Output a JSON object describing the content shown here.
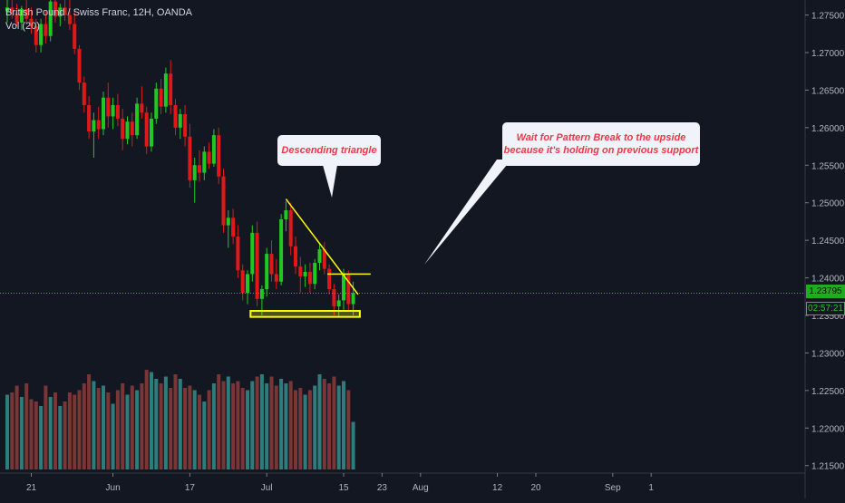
{
  "legend": {
    "symbol": "British Pound / Swiss Franc, 12H, OANDA",
    "volume": "Vol (20)"
  },
  "annotations": {
    "descending": "Descending triangle",
    "wait_line1": "Wait for Pattern Break to the upside",
    "wait_line2": "because it's holding on previous support"
  },
  "price_tag": {
    "price": "1.23795",
    "countdown": "02:57:21"
  },
  "colors": {
    "background": "#131722",
    "bull": "#22c822",
    "bear": "#e01818",
    "vol_bull": "#2e7d7d",
    "vol_bear": "#7a3535",
    "trendline": "#ffff00",
    "current_price_line": "#22c822",
    "axis_text": "#b2b5be",
    "callout_text": "#f23645",
    "callout_bg": "#f0f3fa"
  },
  "chart_data": {
    "type": "candlestick",
    "y_ticks": [
      "1.27500",
      "1.27000",
      "1.26500",
      "1.26000",
      "1.25500",
      "1.25000",
      "1.24500",
      "1.24000",
      "1.23500",
      "1.23000",
      "1.22500",
      "1.22000",
      "1.21500"
    ],
    "y_tick_values": [
      1.275,
      1.27,
      1.265,
      1.26,
      1.255,
      1.25,
      1.245,
      1.24,
      1.235,
      1.23,
      1.225,
      1.22,
      1.215
    ],
    "ylim": [
      1.214,
      1.277
    ],
    "x_ticks": [
      "21",
      "Jun",
      "17",
      "Jul",
      "15",
      "23",
      "Aug",
      "12",
      "20",
      "Sep",
      "1"
    ],
    "x_tick_indices": [
      5,
      22,
      38,
      54,
      70,
      78,
      86,
      102,
      110,
      126,
      134
    ],
    "candles": [
      [
        1.2755,
        1.277,
        1.274,
        1.276
      ],
      [
        1.276,
        1.2772,
        1.2745,
        1.2752
      ],
      [
        1.2752,
        1.2765,
        1.2735,
        1.274
      ],
      [
        1.274,
        1.2762,
        1.273,
        1.2758
      ],
      [
        1.2758,
        1.2772,
        1.274,
        1.2745
      ],
      [
        1.2745,
        1.276,
        1.2725,
        1.2735
      ],
      [
        1.2735,
        1.2745,
        1.27,
        1.271
      ],
      [
        1.271,
        1.2745,
        1.27,
        1.2738
      ],
      [
        1.2738,
        1.2755,
        1.2712,
        1.2722
      ],
      [
        1.2722,
        1.2775,
        1.2715,
        1.2768
      ],
      [
        1.2768,
        1.278,
        1.274,
        1.2748
      ],
      [
        1.2748,
        1.2765,
        1.2735,
        1.276
      ],
      [
        1.276,
        1.2782,
        1.2742,
        1.275
      ],
      [
        1.275,
        1.277,
        1.273,
        1.2738
      ],
      [
        1.2738,
        1.2755,
        1.2698,
        1.2705
      ],
      [
        1.2705,
        1.271,
        1.265,
        1.266
      ],
      [
        1.266,
        1.2668,
        1.262,
        1.263
      ],
      [
        1.263,
        1.2642,
        1.2585,
        1.2595
      ],
      [
        1.2595,
        1.262,
        1.256,
        1.261
      ],
      [
        1.261,
        1.2628,
        1.2585,
        1.2598
      ],
      [
        1.2598,
        1.2648,
        1.259,
        1.264
      ],
      [
        1.264,
        1.266,
        1.26,
        1.2615
      ],
      [
        1.2615,
        1.264,
        1.2598,
        1.263
      ],
      [
        1.263,
        1.2645,
        1.2602,
        1.2612
      ],
      [
        1.2612,
        1.2625,
        1.257,
        1.2585
      ],
      [
        1.2585,
        1.2615,
        1.2578,
        1.2608
      ],
      [
        1.2608,
        1.262,
        1.2575,
        1.259
      ],
      [
        1.259,
        1.264,
        1.2585,
        1.2632
      ],
      [
        1.2632,
        1.2655,
        1.2612,
        1.262
      ],
      [
        1.262,
        1.2628,
        1.2565,
        1.2575
      ],
      [
        1.2575,
        1.262,
        1.2568,
        1.2612
      ],
      [
        1.2612,
        1.266,
        1.2605,
        1.2652
      ],
      [
        1.2652,
        1.2665,
        1.2618,
        1.2628
      ],
      [
        1.2628,
        1.268,
        1.262,
        1.2672
      ],
      [
        1.2672,
        1.269,
        1.2618,
        1.263
      ],
      [
        1.263,
        1.2638,
        1.259,
        1.26
      ],
      [
        1.26,
        1.2625,
        1.2585,
        1.2618
      ],
      [
        1.2618,
        1.263,
        1.2575,
        1.2588
      ],
      [
        1.2588,
        1.2605,
        1.252,
        1.253
      ],
      [
        1.253,
        1.256,
        1.25,
        1.255
      ],
      [
        1.255,
        1.257,
        1.2528,
        1.254
      ],
      [
        1.254,
        1.2575,
        1.253,
        1.2568
      ],
      [
        1.2568,
        1.258,
        1.2545,
        1.2552
      ],
      [
        1.2552,
        1.2598,
        1.2548,
        1.259
      ],
      [
        1.259,
        1.26,
        1.2525,
        1.2535
      ],
      [
        1.2535,
        1.2545,
        1.246,
        1.247
      ],
      [
        1.247,
        1.249,
        1.244,
        1.248
      ],
      [
        1.248,
        1.2492,
        1.2445,
        1.2455
      ],
      [
        1.2455,
        1.247,
        1.24,
        1.241
      ],
      [
        1.241,
        1.2418,
        1.237,
        1.238
      ],
      [
        1.238,
        1.241,
        1.2365,
        1.2405
      ],
      [
        1.2405,
        1.247,
        1.2395,
        1.246
      ],
      [
        1.246,
        1.2475,
        1.2362,
        1.2372
      ],
      [
        1.2372,
        1.239,
        1.235,
        1.2385
      ],
      [
        1.2385,
        1.244,
        1.2375,
        1.2432
      ],
      [
        1.2432,
        1.245,
        1.2395,
        1.2405
      ],
      [
        1.2405,
        1.2425,
        1.2385,
        1.2395
      ],
      [
        1.2395,
        1.2485,
        1.239,
        1.2478
      ],
      [
        1.2478,
        1.2502,
        1.2462,
        1.249
      ],
      [
        1.249,
        1.25,
        1.243,
        1.2442
      ],
      [
        1.2442,
        1.2455,
        1.2405,
        1.2415
      ],
      [
        1.2415,
        1.2428,
        1.238,
        1.2402
      ],
      [
        1.2402,
        1.2418,
        1.2388,
        1.2408
      ],
      [
        1.2408,
        1.242,
        1.238,
        1.2392
      ],
      [
        1.2392,
        1.2425,
        1.2385,
        1.242
      ],
      [
        1.242,
        1.2445,
        1.241,
        1.2438
      ],
      [
        1.2438,
        1.2448,
        1.2405,
        1.2412
      ],
      [
        1.2412,
        1.2418,
        1.2378,
        1.2385
      ],
      [
        1.2385,
        1.2392,
        1.235,
        1.2362
      ],
      [
        1.2362,
        1.2378,
        1.2348,
        1.237
      ],
      [
        1.237,
        1.2412,
        1.2355,
        1.2405
      ],
      [
        1.2405,
        1.241,
        1.2355,
        1.2365
      ],
      [
        1.2365,
        1.2395,
        1.235,
        1.238
      ]
    ],
    "volumes": [
      330,
      340,
      370,
      320,
      380,
      310,
      300,
      280,
      370,
      320,
      340,
      280,
      300,
      340,
      330,
      350,
      380,
      420,
      390,
      360,
      370,
      340,
      290,
      350,
      380,
      330,
      370,
      350,
      380,
      440,
      430,
      400,
      380,
      410,
      360,
      420,
      400,
      360,
      370,
      350,
      330,
      300,
      350,
      380,
      420,
      390,
      410,
      380,
      390,
      360,
      350,
      390,
      410,
      420,
      380,
      410,
      370,
      400,
      380,
      390,
      350,
      360,
      330,
      350,
      370,
      420,
      400,
      380,
      410,
      370,
      390,
      350,
      210
    ],
    "current_price": 1.23795,
    "current_price_label": "1.23795",
    "support_zone": [
      1.2348,
      1.2356
    ],
    "resistance_line": 1.2405,
    "descending_line": [
      [
        58,
        1.2505
      ],
      [
        73,
        1.2378
      ]
    ]
  }
}
